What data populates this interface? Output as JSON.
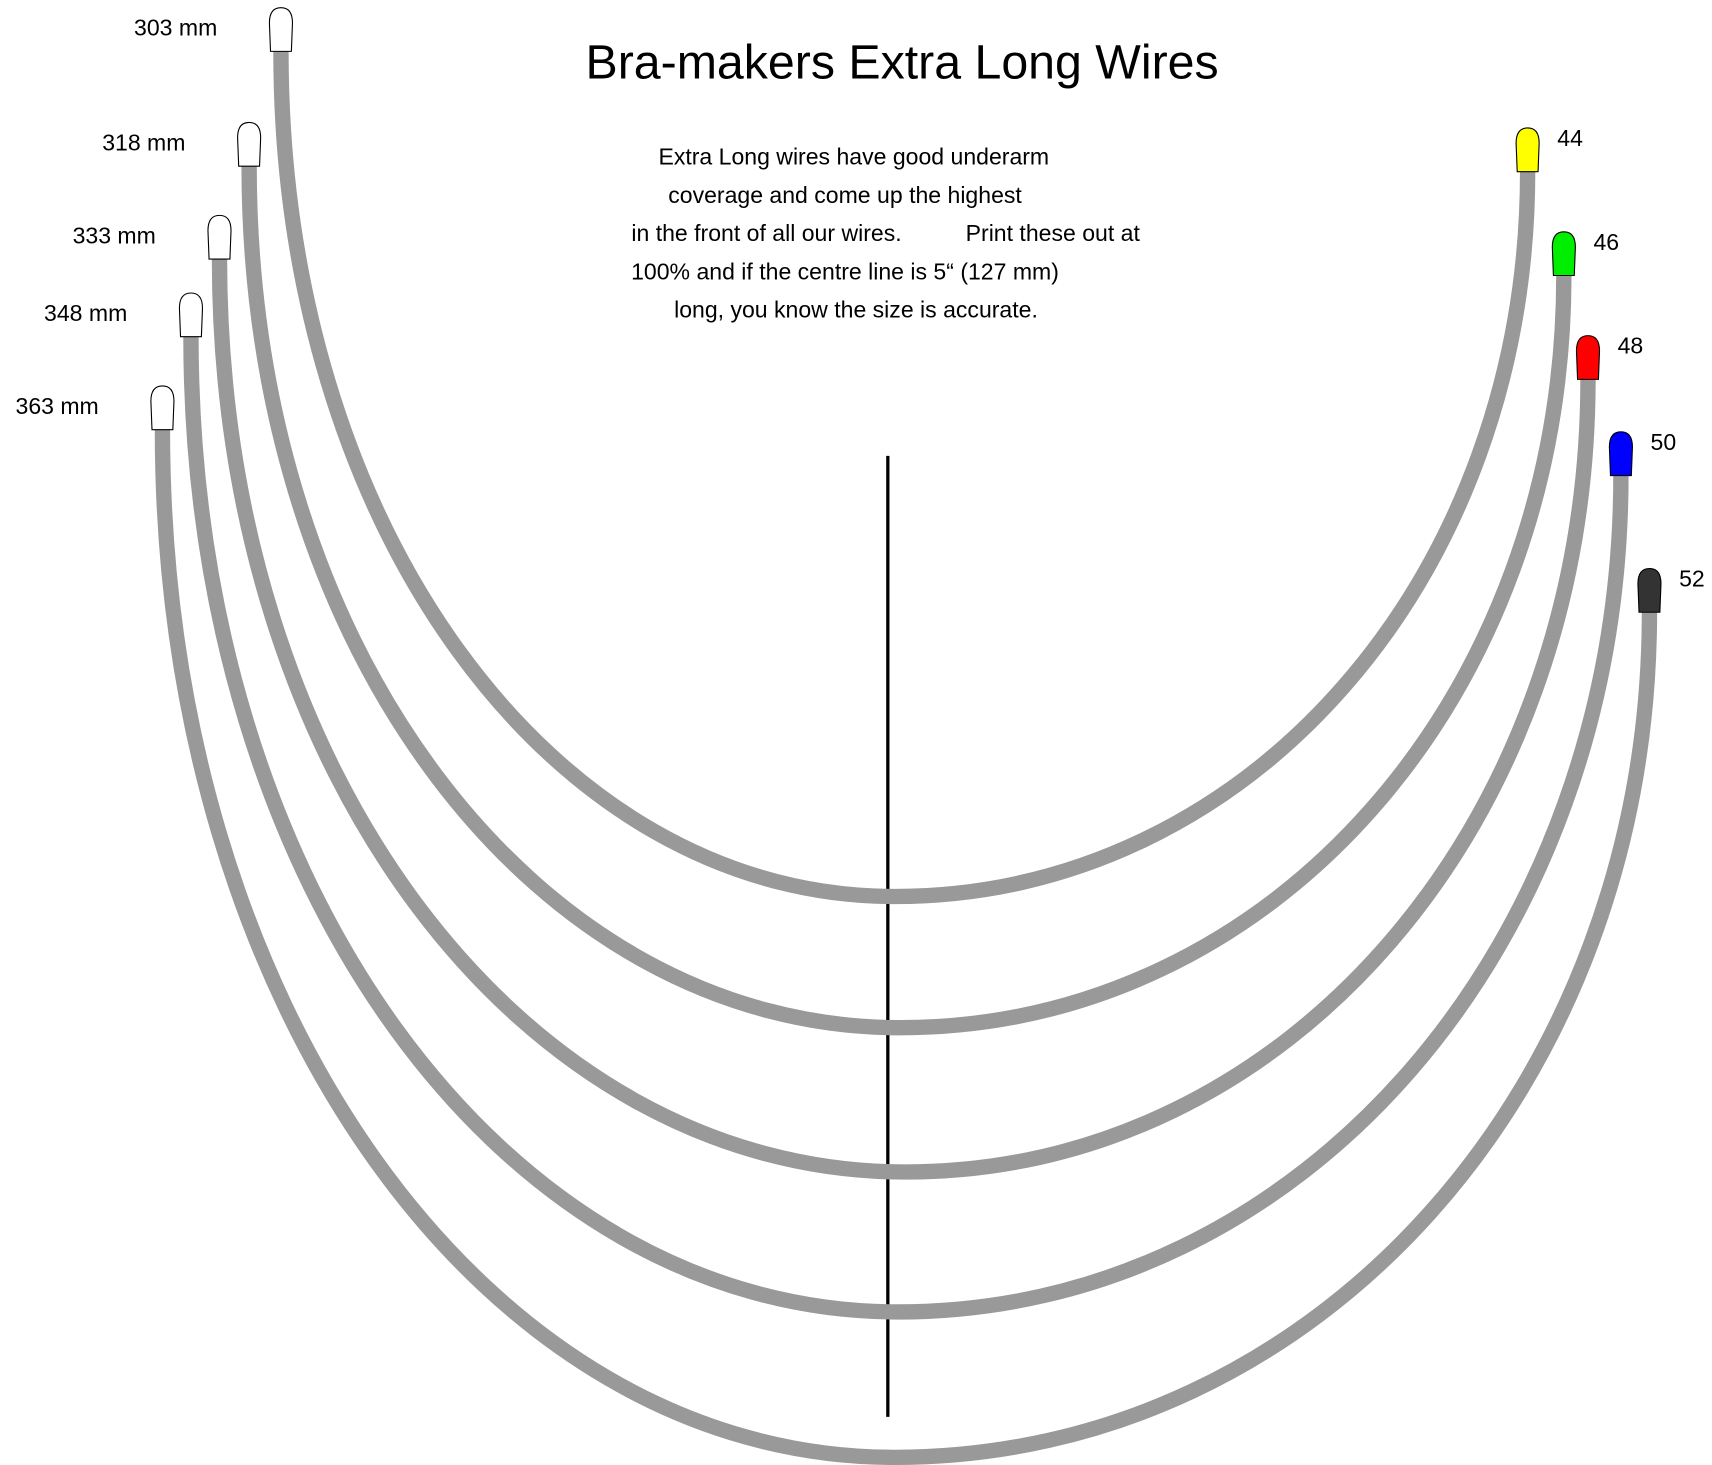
{
  "title": "Bra-makers Extra Long Wires",
  "description": [
    "Extra Long wires have good underarm",
    "coverage and come up the highest",
    "in the front of all our wires.          Print these out at",
    "100% and if the centre line is 5“ (127 mm)",
    "long, you know the size is accurate."
  ],
  "wires": [
    {
      "length": "303 mm",
      "size": "44",
      "color": "#ffff00"
    },
    {
      "length": "318 mm",
      "size": "46",
      "color": "#00ee00"
    },
    {
      "length": "333 mm",
      "size": "48",
      "color": "#ff0000"
    },
    {
      "length": "348 mm",
      "size": "50",
      "color": "#0000ff"
    },
    {
      "length": "363 mm",
      "size": "52",
      "color": "#333333"
    }
  ]
}
